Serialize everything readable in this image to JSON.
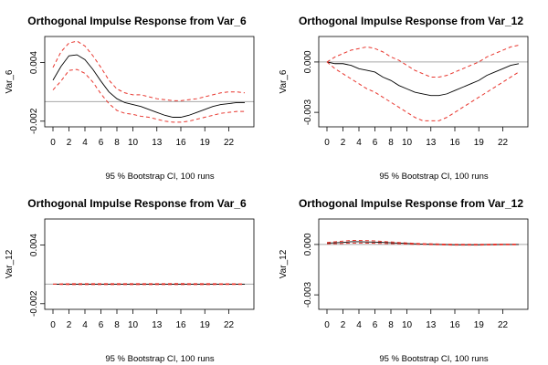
{
  "chart_data": [
    {
      "type": "line",
      "title": "Orthogonal Impulse Response from Var_6",
      "ylabel": "Var_6",
      "xlabel": "95 % Bootstrap CI,  100 runs",
      "xlim": [
        0,
        24
      ],
      "ylim": [
        -0.0023,
        0.0063
      ],
      "x_ticks": [
        0,
        2,
        4,
        6,
        8,
        10,
        13,
        16,
        19,
        22
      ],
      "y_ticks": [
        -0.002,
        0.004
      ],
      "y_tick_labels": [
        "-0.002",
        "0.004"
      ],
      "zero_line": 0,
      "x": [
        0,
        1,
        2,
        3,
        4,
        5,
        6,
        7,
        8,
        9,
        10,
        11,
        12,
        13,
        14,
        15,
        16,
        17,
        18,
        19,
        20,
        21,
        22,
        23,
        24
      ],
      "series": [
        {
          "role": "response",
          "color": "#000000",
          "dashed": false,
          "values": [
            0.0022,
            0.0036,
            0.0047,
            0.0048,
            0.0043,
            0.0033,
            0.0021,
            0.001,
            0.0003,
            -0.0001,
            -0.0003,
            -0.0005,
            -0.0008,
            -0.0011,
            -0.0014,
            -0.0016,
            -0.0016,
            -0.0014,
            -0.0011,
            -0.0008,
            -0.0005,
            -0.0003,
            -0.0002,
            -0.0001,
            -0.0001
          ]
        },
        {
          "role": "upper",
          "color": "#e8352d",
          "dashed": true,
          "values": [
            0.0035,
            0.0051,
            0.006,
            0.0062,
            0.0057,
            0.0047,
            0.0035,
            0.0022,
            0.0013,
            0.0009,
            0.0007,
            0.0007,
            0.0005,
            0.0003,
            0.0002,
            0.0001,
            0.0001,
            0.0002,
            0.0003,
            0.0005,
            0.0007,
            0.0009,
            0.001,
            0.001,
            0.0009
          ]
        },
        {
          "role": "lower",
          "color": "#e8352d",
          "dashed": true,
          "values": [
            0.0012,
            0.0021,
            0.0032,
            0.0033,
            0.0029,
            0.002,
            0.0008,
            -0.0002,
            -0.0009,
            -0.0012,
            -0.0013,
            -0.0015,
            -0.0016,
            -0.0018,
            -0.002,
            -0.0021,
            -0.0021,
            -0.002,
            -0.0018,
            -0.0016,
            -0.0014,
            -0.0012,
            -0.0011,
            -0.001,
            -0.001
          ]
        }
      ]
    },
    {
      "type": "line",
      "title": "Orthogonal Impulse Response from Var_12",
      "ylabel": "Var_6",
      "xlabel": "95 % Bootstrap CI,  100 runs",
      "xlim": [
        0,
        24
      ],
      "ylim": [
        -0.0037,
        0.0013
      ],
      "x_ticks": [
        0,
        2,
        4,
        6,
        8,
        10,
        13,
        16,
        19,
        22
      ],
      "y_ticks": [
        0.0,
        -0.003
      ],
      "y_tick_labels": [
        "0.000",
        "-0.003"
      ],
      "zero_line": 0,
      "x": [
        0,
        1,
        2,
        3,
        4,
        5,
        6,
        7,
        8,
        9,
        10,
        11,
        12,
        13,
        14,
        15,
        16,
        17,
        18,
        19,
        20,
        21,
        22,
        23,
        24
      ],
      "series": [
        {
          "role": "response",
          "color": "#000000",
          "dashed": false,
          "values": [
            0.0,
            -0.0001,
            -0.0001,
            -0.0002,
            -0.0004,
            -0.0005,
            -0.0006,
            -0.0009,
            -0.0011,
            -0.0014,
            -0.0016,
            -0.0018,
            -0.0019,
            -0.002,
            -0.002,
            -0.0019,
            -0.0017,
            -0.0015,
            -0.0013,
            -0.0011,
            -0.0008,
            -0.0006,
            -0.0004,
            -0.0002,
            -0.0001
          ]
        },
        {
          "role": "upper",
          "color": "#e8352d",
          "dashed": true,
          "values": [
            0.0,
            0.0003,
            0.0005,
            0.0007,
            0.0008,
            0.0009,
            0.0008,
            0.0006,
            0.0003,
            0.0001,
            -0.0002,
            -0.0005,
            -0.0007,
            -0.0009,
            -0.0009,
            -0.0008,
            -0.0006,
            -0.0004,
            -0.0002,
            0.0,
            0.0003,
            0.0005,
            0.0007,
            0.0009,
            0.001
          ]
        },
        {
          "role": "lower",
          "color": "#e8352d",
          "dashed": true,
          "values": [
            0.0,
            -0.0004,
            -0.0007,
            -0.001,
            -0.0013,
            -0.0016,
            -0.0018,
            -0.0021,
            -0.0024,
            -0.0027,
            -0.003,
            -0.0033,
            -0.0035,
            -0.0035,
            -0.0035,
            -0.0033,
            -0.003,
            -0.0027,
            -0.0024,
            -0.0021,
            -0.0018,
            -0.0015,
            -0.0012,
            -0.0009,
            -0.0006
          ]
        }
      ]
    },
    {
      "type": "line",
      "title": "Orthogonal Impulse Response from Var_6",
      "ylabel": "Var_12",
      "xlabel": "95 % Bootstrap CI,  100 runs",
      "xlim": [
        0,
        24
      ],
      "ylim": [
        -0.0023,
        0.0063
      ],
      "x_ticks": [
        0,
        2,
        4,
        6,
        8,
        10,
        13,
        16,
        19,
        22
      ],
      "y_ticks": [
        -0.002,
        0.004
      ],
      "y_tick_labels": [
        "-0.002",
        "0.004"
      ],
      "zero_line": 0,
      "x": [
        0,
        1,
        2,
        3,
        4,
        5,
        6,
        7,
        8,
        9,
        10,
        11,
        12,
        13,
        14,
        15,
        16,
        17,
        18,
        19,
        20,
        21,
        22,
        23,
        24
      ],
      "series": [
        {
          "role": "response",
          "color": "#000000",
          "dashed": false,
          "values": [
            0,
            0,
            0,
            0,
            0,
            0,
            0,
            0,
            0,
            0,
            0,
            0,
            0,
            0,
            0,
            0,
            0,
            0,
            0,
            0,
            0,
            0,
            0,
            0,
            0
          ]
        },
        {
          "role": "upper",
          "color": "#e8352d",
          "dashed": true,
          "values": [
            0,
            3e-05,
            4e-05,
            5e-05,
            5e-05,
            5e-05,
            5e-05,
            5e-05,
            5e-05,
            5e-05,
            5e-05,
            5e-05,
            5e-05,
            5e-05,
            5e-05,
            6e-05,
            6e-05,
            5e-05,
            5e-05,
            5e-05,
            5e-05,
            4e-05,
            4e-05,
            3e-05,
            3e-05
          ]
        },
        {
          "role": "lower",
          "color": "#e8352d",
          "dashed": true,
          "values": [
            0,
            -3e-05,
            -4e-05,
            -4e-05,
            -4e-05,
            -4e-05,
            -4e-05,
            -4e-05,
            -4e-05,
            -4e-05,
            -4e-05,
            -4e-05,
            -4e-05,
            -4e-05,
            -4e-05,
            -4e-05,
            -4e-05,
            -4e-05,
            -4e-05,
            -4e-05,
            -4e-05,
            -3e-05,
            -3e-05,
            -3e-05,
            -3e-05
          ]
        }
      ]
    },
    {
      "type": "line",
      "title": "Orthogonal Impulse Response from Var_12",
      "ylabel": "Var_12",
      "xlabel": "95 % Bootstrap CI,  100 runs",
      "xlim": [
        0,
        24
      ],
      "ylim": [
        -0.0037,
        0.0013
      ],
      "x_ticks": [
        0,
        2,
        4,
        6,
        8,
        10,
        13,
        16,
        19,
        22
      ],
      "y_ticks": [
        0.0,
        -0.003
      ],
      "y_tick_labels": [
        "0.000",
        "-0.003"
      ],
      "zero_line": 0,
      "x": [
        0,
        1,
        2,
        3,
        4,
        5,
        6,
        7,
        8,
        9,
        10,
        11,
        12,
        13,
        14,
        15,
        16,
        17,
        18,
        19,
        20,
        21,
        22,
        23,
        24
      ],
      "series": [
        {
          "role": "response",
          "color": "#000000",
          "dashed": false,
          "values": [
            8e-05,
            0.0001,
            0.00012,
            0.00016,
            0.00016,
            0.00015,
            0.00014,
            0.00012,
            0.0001,
            8e-05,
            6e-05,
            4e-05,
            2e-05,
            1e-05,
            0.0,
            -1e-05,
            -2e-05,
            -2e-05,
            -2e-05,
            -2e-05,
            -1e-05,
            -1e-05,
            0.0,
            0.0,
            0.0
          ]
        },
        {
          "role": "upper",
          "color": "#e8352d",
          "dashed": true,
          "values": [
            0.00012,
            0.00016,
            0.0002,
            0.00024,
            0.00024,
            0.00023,
            0.00021,
            0.00018,
            0.00015,
            0.00012,
            9e-05,
            7e-05,
            5e-05,
            4e-05,
            3e-05,
            2e-05,
            1e-05,
            1e-05,
            1e-05,
            1e-05,
            1e-05,
            2e-05,
            2e-05,
            2e-05,
            2e-05
          ]
        },
        {
          "role": "lower",
          "color": "#e8352d",
          "dashed": true,
          "values": [
            4e-05,
            4e-05,
            6e-05,
            8e-05,
            9e-05,
            8e-05,
            7e-05,
            6e-05,
            5e-05,
            4e-05,
            2e-05,
            1e-05,
            0.0,
            -1e-05,
            -2e-05,
            -3e-05,
            -4e-05,
            -4e-05,
            -4e-05,
            -4e-05,
            -3e-05,
            -3e-05,
            -2e-05,
            -2e-05,
            -2e-05
          ]
        }
      ]
    }
  ]
}
